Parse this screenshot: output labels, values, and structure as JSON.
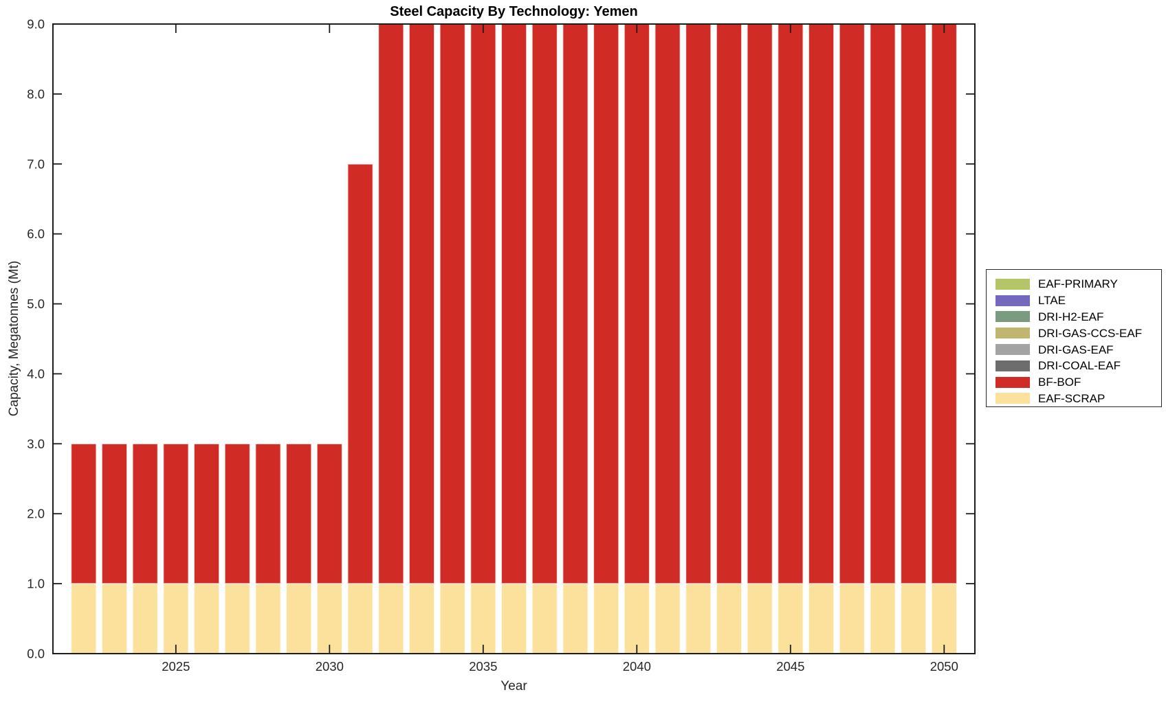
{
  "colors": {
    "background": "#ffffff",
    "axis": "#1c1c1c",
    "tick_label": "#262626",
    "bar_edge": "rgba(255,255,255,0.75)"
  },
  "chart_data": {
    "type": "bar",
    "stacked": true,
    "title": "Steel Capacity By Technology: Yemen",
    "xlabel": "Year",
    "ylabel": "Capacity, Megatonnes (Mt)",
    "grid": false,
    "legend_position": "right-outside",
    "xlim": [
      2021,
      2051
    ],
    "ylim": [
      0,
      9
    ],
    "categories": [
      2022,
      2023,
      2024,
      2025,
      2026,
      2027,
      2028,
      2029,
      2030,
      2031,
      2032,
      2033,
      2034,
      2035,
      2036,
      2037,
      2038,
      2039,
      2040,
      2041,
      2042,
      2043,
      2044,
      2045,
      2046,
      2047,
      2048,
      2049,
      2050
    ],
    "xticks": {
      "values": [
        2025,
        2030,
        2035,
        2040,
        2045,
        2050
      ],
      "labels": [
        "2025",
        "2030",
        "2035",
        "2040",
        "2045",
        "2050"
      ]
    },
    "yticks": {
      "values": [
        0,
        1,
        2,
        3,
        4,
        5,
        6,
        7,
        8,
        9
      ],
      "labels": [
        "0.0",
        "1.0",
        "2.0",
        "3.0",
        "4.0",
        "5.0",
        "6.0",
        "7.0",
        "8.0",
        "9.0"
      ]
    },
    "stack_order": [
      "EAF-SCRAP",
      "BF-BOF",
      "DRI-COAL-EAF",
      "DRI-GAS-EAF",
      "DRI-GAS-CCS-EAF",
      "DRI-H2-EAF",
      "LTAE",
      "EAF-PRIMARY"
    ],
    "series": [
      {
        "name": "EAF-PRIMARY",
        "color": "#b3c566",
        "values": [
          0,
          0,
          0,
          0,
          0,
          0,
          0,
          0,
          0,
          0,
          0,
          0,
          0,
          0,
          0,
          0,
          0,
          0,
          0,
          0,
          0,
          0,
          0,
          0,
          0,
          0,
          0,
          0,
          0
        ]
      },
      {
        "name": "LTAE",
        "color": "#7468bd",
        "values": [
          0,
          0,
          0,
          0,
          0,
          0,
          0,
          0,
          0,
          0,
          0,
          0,
          0,
          0,
          0,
          0,
          0,
          0,
          0,
          0,
          0,
          0,
          0,
          0,
          0,
          0,
          0,
          0,
          0
        ]
      },
      {
        "name": "DRI-H2-EAF",
        "color": "#7a9b80",
        "values": [
          0,
          0,
          0,
          0,
          0,
          0,
          0,
          0,
          0,
          0,
          0,
          0,
          0,
          0,
          0,
          0,
          0,
          0,
          0,
          0,
          0,
          0,
          0,
          0,
          0,
          0,
          0,
          0,
          0
        ]
      },
      {
        "name": "DRI-GAS-CCS-EAF",
        "color": "#c1b670",
        "values": [
          0,
          0,
          0,
          0,
          0,
          0,
          0,
          0,
          0,
          0,
          0,
          0,
          0,
          0,
          0,
          0,
          0,
          0,
          0,
          0,
          0,
          0,
          0,
          0,
          0,
          0,
          0,
          0,
          0
        ]
      },
      {
        "name": "DRI-GAS-EAF",
        "color": "#a3a3a3",
        "values": [
          0,
          0,
          0,
          0,
          0,
          0,
          0,
          0,
          0,
          0,
          0,
          0,
          0,
          0,
          0,
          0,
          0,
          0,
          0,
          0,
          0,
          0,
          0,
          0,
          0,
          0,
          0,
          0,
          0
        ]
      },
      {
        "name": "DRI-COAL-EAF",
        "color": "#6d6d6d",
        "values": [
          0,
          0,
          0,
          0,
          0,
          0,
          0,
          0,
          0,
          0,
          0,
          0,
          0,
          0,
          0,
          0,
          0,
          0,
          0,
          0,
          0,
          0,
          0,
          0,
          0,
          0,
          0,
          0,
          0
        ]
      },
      {
        "name": "BF-BOF",
        "color": "#d02b25",
        "values": [
          2,
          2,
          2,
          2,
          2,
          2,
          2,
          2,
          2,
          6,
          8,
          8,
          8,
          8,
          8,
          8,
          8,
          8,
          8,
          8,
          8,
          8,
          8,
          8,
          8,
          8,
          8,
          8,
          8
        ]
      },
      {
        "name": "EAF-SCRAP",
        "color": "#fbe19c",
        "values": [
          1,
          1,
          1,
          1,
          1,
          1,
          1,
          1,
          1,
          1,
          1,
          1,
          1,
          1,
          1,
          1,
          1,
          1,
          1,
          1,
          1,
          1,
          1,
          1,
          1,
          1,
          1,
          1,
          1
        ]
      }
    ]
  }
}
